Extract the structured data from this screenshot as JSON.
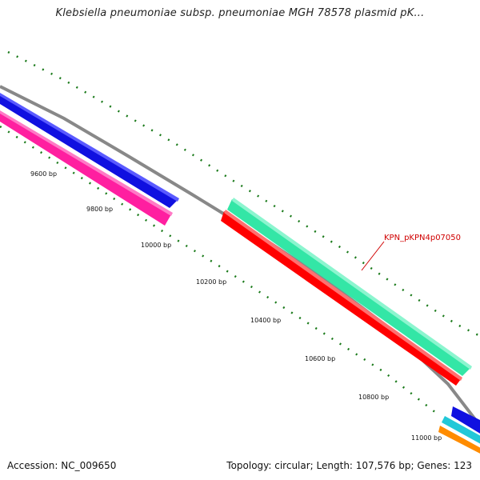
{
  "title": "Klebsiella pneumoniae subsp. pneumoniae MGH 78578 plasmid pK...",
  "footer": {
    "accession": "Accession: NC_009650",
    "summary": "Topology: circular; Length: 107,576 bp; Genes: 123"
  },
  "map": {
    "backbone_color": "#808080",
    "tick_color": "#1a7a1a",
    "ticks": [
      {
        "label": "9600 bp"
      },
      {
        "label": "9800 bp"
      },
      {
        "label": "10000 bp"
      },
      {
        "label": "10200 bp"
      },
      {
        "label": "10400 bp"
      },
      {
        "label": "10600 bp"
      },
      {
        "label": "10800 bp"
      },
      {
        "label": "11000 bp"
      }
    ],
    "features": [
      {
        "name": "blue-feature-left",
        "color": "#1010e0"
      },
      {
        "name": "pink-feature-left",
        "color": "#ff1fa0"
      },
      {
        "name": "teal-feature",
        "color": "#33e6a6"
      },
      {
        "name": "red-feature",
        "color": "#ff0000"
      },
      {
        "name": "blue-feature-right",
        "color": "#1010e0"
      },
      {
        "name": "cyan-feature-right",
        "color": "#22c8d8"
      },
      {
        "name": "orange-feature-right",
        "color": "#ff8c00"
      }
    ],
    "gene_label": {
      "text": "KPN_pKPN4p07050",
      "color": "#d00000"
    }
  }
}
